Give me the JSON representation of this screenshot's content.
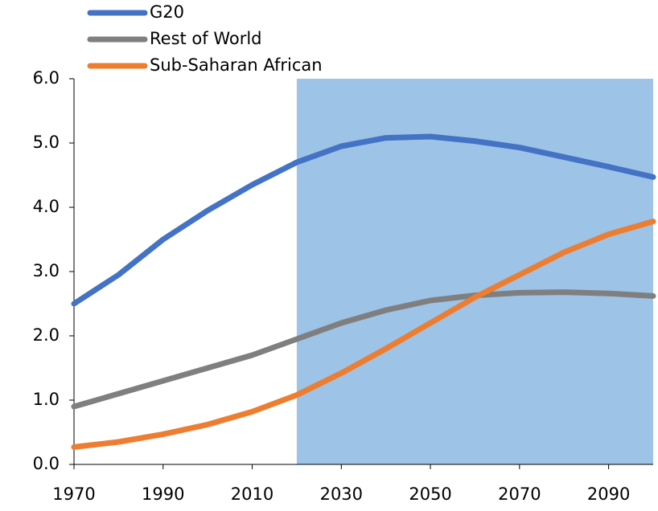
{
  "chart_data": {
    "type": "line",
    "x": [
      1970,
      1980,
      1990,
      2000,
      2010,
      2020,
      2030,
      2040,
      2050,
      2060,
      2070,
      2080,
      2090,
      2100
    ],
    "series": [
      {
        "name": "G20",
        "color": "#4472c4",
        "values": [
          2.5,
          2.95,
          3.5,
          3.95,
          4.35,
          4.7,
          4.95,
          5.08,
          5.1,
          5.03,
          4.93,
          4.78,
          4.63,
          4.47
        ]
      },
      {
        "name": "Rest of World",
        "color": "#7f7f7f",
        "values": [
          0.9,
          1.1,
          1.3,
          1.5,
          1.7,
          1.95,
          2.2,
          2.4,
          2.55,
          2.63,
          2.67,
          2.68,
          2.66,
          2.62
        ]
      },
      {
        "name": "Sub-Saharan African",
        "color": "#ed7d31",
        "values": [
          0.27,
          0.35,
          0.47,
          0.62,
          0.82,
          1.08,
          1.42,
          1.8,
          2.2,
          2.6,
          2.95,
          3.3,
          3.58,
          3.78
        ]
      }
    ],
    "xlim": [
      1970,
      2100
    ],
    "xticks": [
      1970,
      1990,
      2010,
      2030,
      2050,
      2070,
      2090
    ],
    "ylim": [
      0,
      6
    ],
    "yticks": [
      {
        "value": 0,
        "label": "0.0"
      },
      {
        "value": 1,
        "label": "1.0"
      },
      {
        "value": 2,
        "label": "2.0"
      },
      {
        "value": 3,
        "label": "3.0"
      },
      {
        "value": 4,
        "label": "4.0"
      },
      {
        "value": 5,
        "label": "5.0"
      },
      {
        "value": 6,
        "label": "6.0"
      }
    ],
    "shaded_region": {
      "x": [
        2020,
        2100
      ],
      "color": "#9dc3e6"
    },
    "legend": "top-left"
  }
}
